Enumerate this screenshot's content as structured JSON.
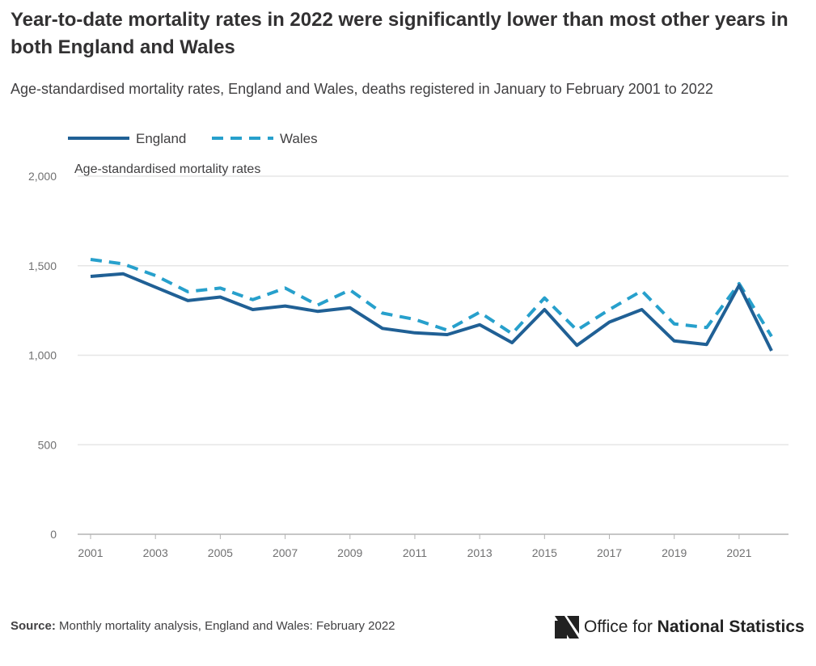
{
  "title": "Year-to-date mortality rates in 2022 were significantly lower than most other years in both England and Wales",
  "subtitle": "Age-standardised mortality rates, England and Wales, deaths registered in January to February 2001 to 2022",
  "source": {
    "label": "Source:",
    "text": "Monthly mortality analysis, England and Wales: February 2022"
  },
  "logo": {
    "text_regular": "Office for",
    "text_bold": "National Statistics"
  },
  "colors": {
    "england": "#206095",
    "wales": "#27a0cc",
    "grid": "#e6e6e6",
    "axis": "#b3b3b3"
  },
  "chart_data": {
    "type": "line",
    "title": "",
    "ylabel": "Age-standardised mortality rates",
    "xlabel": "",
    "ylim": [
      0,
      2000
    ],
    "yticks": [
      0,
      500,
      1000,
      1500,
      2000
    ],
    "ytick_labels": [
      "0",
      "500",
      "1,000",
      "1,500",
      "2,000"
    ],
    "xticks": [
      2001,
      2003,
      2005,
      2007,
      2009,
      2011,
      2013,
      2015,
      2017,
      2019,
      2021
    ],
    "xtick_labels": [
      "2001",
      "2003",
      "2005",
      "2007",
      "2009",
      "2011",
      "2013",
      "2015",
      "2017",
      "2019",
      "2021"
    ],
    "grid": true,
    "legend_position": "top-left",
    "x": [
      2001,
      2002,
      2003,
      2004,
      2005,
      2006,
      2007,
      2008,
      2009,
      2010,
      2011,
      2012,
      2013,
      2014,
      2015,
      2016,
      2017,
      2018,
      2019,
      2020,
      2021,
      2022
    ],
    "series": [
      {
        "name": "England",
        "style": "solid",
        "values": [
          1440,
          1455,
          1380,
          1305,
          1325,
          1255,
          1275,
          1245,
          1265,
          1150,
          1125,
          1115,
          1170,
          1070,
          1255,
          1055,
          1185,
          1255,
          1080,
          1060,
          1390,
          1025
        ]
      },
      {
        "name": "Wales",
        "style": "dashed",
        "values": [
          1535,
          1510,
          1445,
          1355,
          1375,
          1310,
          1375,
          1280,
          1365,
          1235,
          1200,
          1140,
          1240,
          1120,
          1320,
          1140,
          1255,
          1360,
          1175,
          1155,
          1400,
          1105
        ]
      }
    ]
  }
}
